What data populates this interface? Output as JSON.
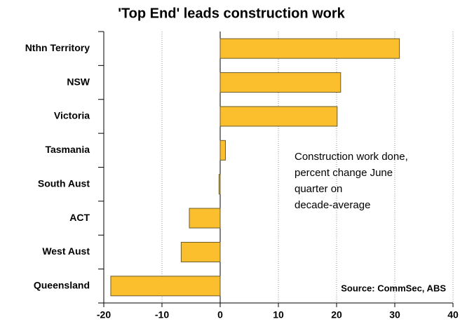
{
  "chart_data": {
    "type": "bar",
    "orientation": "horizontal",
    "title": "'Top End' leads construction work",
    "categories": [
      "Nthn Territory",
      "NSW",
      "Victoria",
      "Tasmania",
      "South Aust",
      "ACT",
      "West Aust",
      "Queensland"
    ],
    "values": [
      30.8,
      20.7,
      20.1,
      0.9,
      -0.2,
      -5.3,
      -6.7,
      -18.8
    ],
    "color": "#fbbf2e",
    "xlim": [
      -20,
      40
    ],
    "xticks": [
      -20,
      -10,
      0,
      10,
      20,
      30,
      40
    ],
    "grid": true,
    "annotation": [
      "Construction work done,",
      "percent change June",
      "quarter on",
      "decade-average"
    ],
    "source": "Source: CommSec, ABS"
  }
}
